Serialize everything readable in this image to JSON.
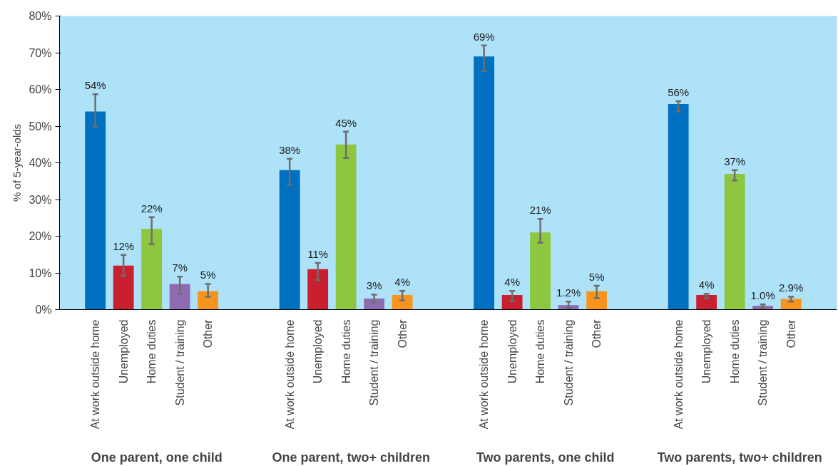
{
  "chart_data": {
    "type": "bar",
    "ylabel": "% of 5-year-olds",
    "categories": [
      "At work outside home",
      "Unemployed",
      "Home duties",
      "Student / training",
      "Other",
      "At work outside home",
      "Unemployed",
      "Home duties",
      "Student / training",
      "Other",
      "At work outside home",
      "Unemployed",
      "Home duties",
      "Student / training",
      "Other",
      "At work outside home",
      "Unemployed",
      "Home duties",
      "Student / training",
      "Other"
    ],
    "values": [
      54,
      12,
      22,
      7,
      5,
      38,
      11,
      45,
      3,
      4,
      69,
      4,
      21,
      1.2,
      5,
      56,
      4,
      37,
      1.0,
      2.9
    ],
    "value_labels": [
      "54%",
      "12%",
      "22%",
      "7%",
      "5%",
      "38%",
      "11%",
      "45%",
      "3%",
      "4%",
      "69%",
      "4%",
      "21%",
      "1.2%",
      "5%",
      "56%",
      "4%",
      "37%",
      "1.0%",
      "2.9%"
    ],
    "errors": [
      [
        49.8,
        58.7
      ],
      [
        9.2,
        14.9
      ],
      [
        17.8,
        25.2
      ],
      [
        4.3,
        9.0
      ],
      [
        3.5,
        7.0
      ],
      [
        34.0,
        41.1
      ],
      [
        8.0,
        12.7
      ],
      [
        41.3,
        48.5
      ],
      [
        2.0,
        4.1
      ],
      [
        2.5,
        5.1
      ],
      [
        65.0,
        72.0
      ],
      [
        2.3,
        5.1
      ],
      [
        18.2,
        24.7
      ],
      [
        0.4,
        2.2
      ],
      [
        3.1,
        6.5
      ],
      [
        54.0,
        56.8
      ],
      [
        3.1,
        4.3
      ],
      [
        35.2,
        38.0
      ],
      [
        0.4,
        1.4
      ],
      [
        2.2,
        3.5
      ]
    ],
    "colors": [
      "#0070c0",
      "#c8202f",
      "#8dc63f",
      "#8e6bb0",
      "#f7941d",
      "#0070c0",
      "#c8202f",
      "#8dc63f",
      "#8e6bb0",
      "#f7941d",
      "#0070c0",
      "#c8202f",
      "#8dc63f",
      "#8e6bb0",
      "#f7941d",
      "#0070c0",
      "#c8202f",
      "#8dc63f",
      "#8e6bb0",
      "#f7941d"
    ],
    "annotations": [
      "One parent, one child",
      "One parent, two+ children",
      "Two parents, one child",
      "Two parents, two+ children"
    ],
    "ylim": [
      0,
      80
    ],
    "yticks": [
      {
        "value": 0,
        "label": "0%"
      },
      {
        "value": 10,
        "label": "10%"
      },
      {
        "value": 20,
        "label": "20%"
      },
      {
        "value": 30,
        "label": "30%"
      },
      {
        "value": 40,
        "label": "40%"
      },
      {
        "value": 50,
        "label": "50%"
      },
      {
        "value": 60,
        "label": "60%"
      },
      {
        "value": 70,
        "label": "70%"
      },
      {
        "value": 80,
        "label": "80%"
      }
    ]
  }
}
